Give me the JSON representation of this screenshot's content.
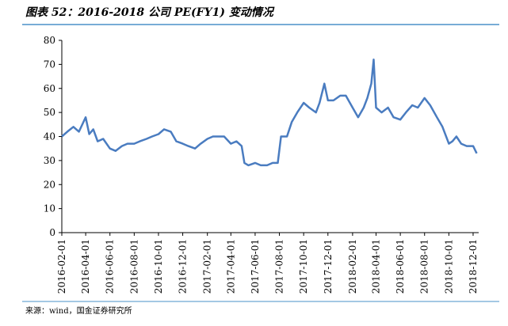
{
  "chart_data": {
    "type": "line",
    "title": "图表 52：2016-2018 公司 PE(FY1) 变动情况",
    "source": "来源：wind，国金证券研究所",
    "x": [
      "2016-02-01",
      "2016-02-15",
      "2016-03-01",
      "2016-03-15",
      "2016-04-01",
      "2016-04-10",
      "2016-04-20",
      "2016-05-01",
      "2016-05-15",
      "2016-06-01",
      "2016-06-15",
      "2016-07-01",
      "2016-07-15",
      "2016-08-01",
      "2016-08-15",
      "2016-09-01",
      "2016-09-15",
      "2016-10-01",
      "2016-10-15",
      "2016-11-01",
      "2016-11-15",
      "2016-12-01",
      "2016-12-15",
      "2017-01-01",
      "2017-01-15",
      "2017-02-01",
      "2017-02-15",
      "2017-03-01",
      "2017-03-15",
      "2017-04-01",
      "2017-04-15",
      "2017-04-28",
      "2017-05-05",
      "2017-05-15",
      "2017-06-01",
      "2017-06-15",
      "2017-07-01",
      "2017-07-15",
      "2017-07-28",
      "2017-08-05",
      "2017-08-20",
      "2017-09-01",
      "2017-09-15",
      "2017-10-01",
      "2017-10-15",
      "2017-11-01",
      "2017-11-10",
      "2017-11-22",
      "2017-12-01",
      "2017-12-15",
      "2018-01-01",
      "2018-01-15",
      "2018-02-01",
      "2018-02-15",
      "2018-03-01",
      "2018-03-10",
      "2018-03-20",
      "2018-03-26",
      "2018-04-01",
      "2018-04-15",
      "2018-05-01",
      "2018-05-15",
      "2018-06-01",
      "2018-06-15",
      "2018-07-01",
      "2018-07-15",
      "2018-08-01",
      "2018-08-15",
      "2018-09-01",
      "2018-09-15",
      "2018-10-01",
      "2018-10-10",
      "2018-10-20",
      "2018-11-01",
      "2018-11-15",
      "2018-12-01",
      "2018-12-10"
    ],
    "series": [
      {
        "name": "PE(FY1)",
        "color": "#4a7cc0",
        "values": [
          40,
          42,
          44,
          42,
          48,
          41,
          43,
          38,
          39,
          35,
          34,
          36,
          37,
          37,
          38,
          39,
          40,
          41,
          43,
          42,
          38,
          37,
          36,
          35,
          37,
          39,
          40,
          40,
          40,
          37,
          38,
          36,
          29,
          28,
          29,
          28,
          28,
          29,
          29,
          40,
          40,
          46,
          50,
          54,
          52,
          50,
          54,
          62,
          55,
          55,
          57,
          57,
          52,
          48,
          52,
          56,
          62,
          72,
          52,
          50,
          52,
          48,
          47,
          50,
          53,
          52,
          56,
          53,
          48,
          44,
          37,
          38,
          40,
          37,
          36,
          36,
          33
        ]
      }
    ],
    "xlim": [
      "2016-02-01",
      "2018-12-15"
    ],
    "xticks": [
      "2016-02-01",
      "2016-04-01",
      "2016-06-01",
      "2016-08-01",
      "2016-10-01",
      "2016-12-01",
      "2017-02-01",
      "2017-04-01",
      "2017-06-01",
      "2017-08-01",
      "2017-10-01",
      "2017-12-01",
      "2018-02-01",
      "2018-04-01",
      "2018-06-01",
      "2018-08-01",
      "2018-10-01",
      "2018-12-01"
    ],
    "ylim": [
      0,
      80
    ],
    "yticks": [
      0,
      10,
      20,
      30,
      40,
      50,
      60,
      70,
      80
    ]
  }
}
